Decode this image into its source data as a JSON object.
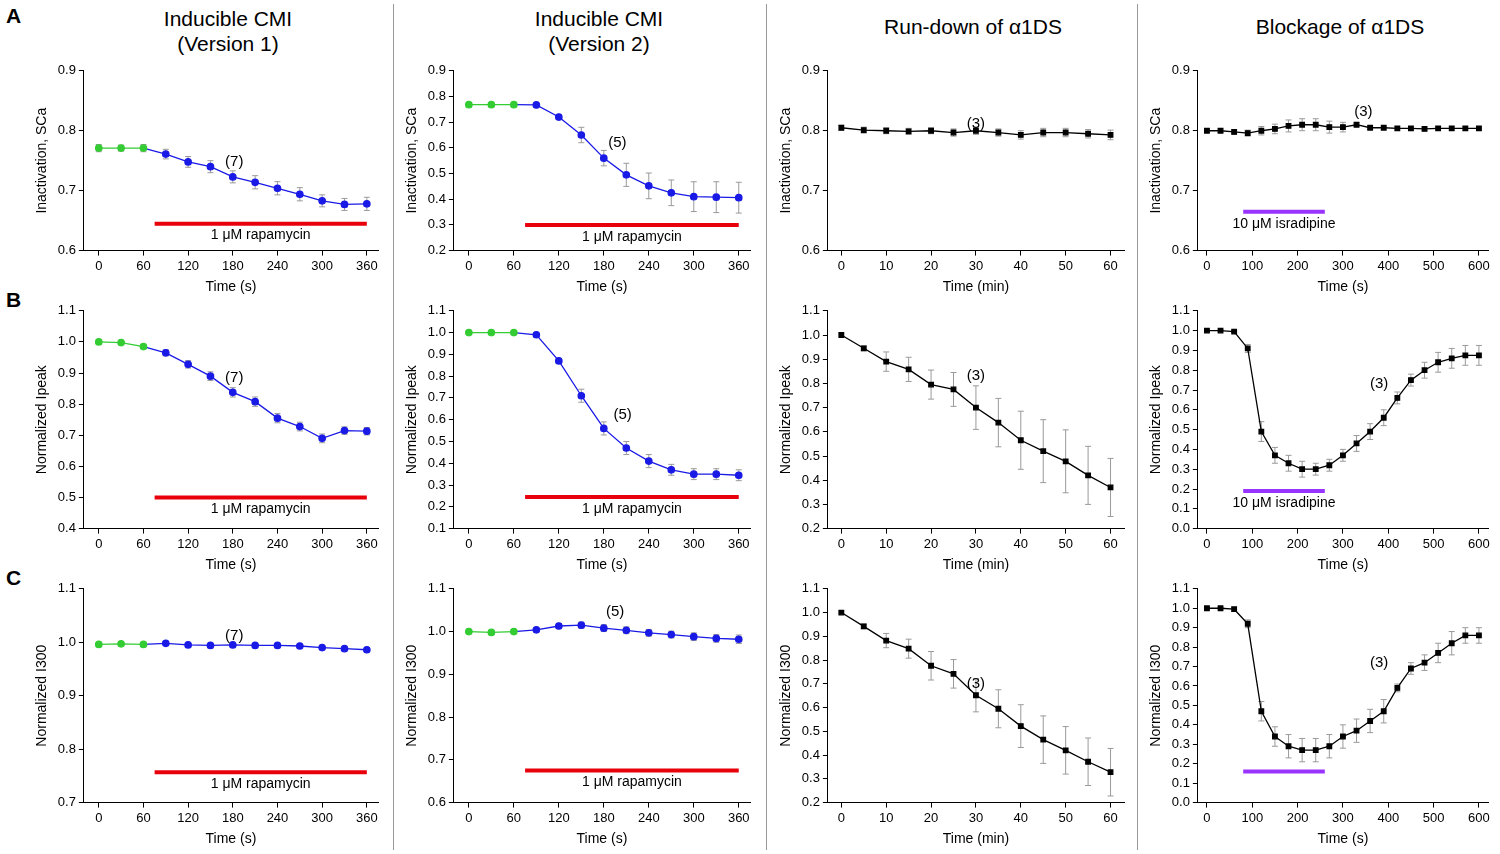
{
  "row_labels": [
    "A",
    "B",
    "C"
  ],
  "chart_data": [
    {
      "type": "line",
      "title": [
        "Inducible CMI",
        "(Version 1)"
      ],
      "x_label": "Time (s)",
      "y_label": "Inactivation, SCa",
      "x": [
        0,
        30,
        60,
        90,
        120,
        150,
        180,
        210,
        240,
        270,
        300,
        330,
        360
      ],
      "values": [
        0.771,
        0.771,
        0.771,
        0.761,
        0.748,
        0.74,
        0.723,
        0.714,
        0.704,
        0.694,
        0.683,
        0.677,
        0.678
      ],
      "errors": [
        0.006,
        0.005,
        0.006,
        0.008,
        0.009,
        0.01,
        0.01,
        0.011,
        0.011,
        0.011,
        0.01,
        0.01,
        0.011
      ],
      "colors": [
        "#33cc33",
        "#33cc33",
        "#33cc33",
        "#1a1ae6",
        "#1a1ae6",
        "#1a1ae6",
        "#1a1ae6",
        "#1a1ae6",
        "#1a1ae6",
        "#1a1ae6",
        "#1a1ae6",
        "#1a1ae6",
        "#1a1ae6"
      ],
      "marker": "circle",
      "grid": false,
      "xlim": [
        -20,
        375
      ],
      "xticks": [
        0,
        60,
        120,
        180,
        240,
        300,
        360
      ],
      "ylim": [
        0.6,
        0.9
      ],
      "yticks": [
        0.6,
        0.7,
        0.8,
        0.9
      ],
      "annotations": [
        {
          "text": "(7)",
          "x": 182,
          "y": 0.748
        }
      ],
      "treatment": {
        "label": "1 μM rapamycin",
        "x": [
          75,
          360
        ],
        "y": 0.645,
        "color": "#e8000b"
      }
    },
    {
      "type": "line",
      "title": [
        "Inducible CMI",
        "(Version 2)"
      ],
      "x_label": "Time (s)",
      "y_label": "Inactivation, SCa",
      "x": [
        0,
        30,
        60,
        90,
        120,
        150,
        180,
        210,
        240,
        270,
        300,
        330,
        360
      ],
      "values": [
        0.768,
        0.768,
        0.768,
        0.767,
        0.72,
        0.65,
        0.56,
        0.495,
        0.452,
        0.425,
        0.41,
        0.408,
        0.406
      ],
      "errors": [
        0.004,
        0.003,
        0.003,
        0.005,
        0.01,
        0.03,
        0.03,
        0.045,
        0.05,
        0.05,
        0.058,
        0.06,
        0.06
      ],
      "colors": [
        "#33cc33",
        "#33cc33",
        "#33cc33",
        "#1a1ae6",
        "#1a1ae6",
        "#1a1ae6",
        "#1a1ae6",
        "#1a1ae6",
        "#1a1ae6",
        "#1a1ae6",
        "#1a1ae6",
        "#1a1ae6",
        "#1a1ae6"
      ],
      "marker": "circle",
      "grid": false,
      "xlim": [
        -20,
        375
      ],
      "xticks": [
        0,
        60,
        120,
        180,
        240,
        300,
        360
      ],
      "ylim": [
        0.2,
        0.9
      ],
      "yticks": [
        0.2,
        0.3,
        0.4,
        0.5,
        0.6,
        0.7,
        0.8,
        0.9
      ],
      "annotations": [
        {
          "text": "(5)",
          "x": 198,
          "y": 0.62
        }
      ],
      "treatment": {
        "label": "1 μM rapamycin",
        "x": [
          75,
          360
        ],
        "y": 0.3,
        "color": "#e8000b"
      }
    },
    {
      "type": "line",
      "title": [
        "Run-down of α1DS"
      ],
      "x_label": "Time (min)",
      "y_label": "Inactivation, SCa",
      "x": [
        0,
        5,
        10,
        15,
        20,
        25,
        30,
        35,
        40,
        45,
        50,
        55,
        60
      ],
      "values": [
        0.805,
        0.801,
        0.8,
        0.799,
        0.8,
        0.797,
        0.8,
        0.797,
        0.793,
        0.797,
        0.797,
        0.795,
        0.793
      ],
      "errors": [
        0.004,
        0.005,
        0.005,
        0.005,
        0.005,
        0.006,
        0.006,
        0.006,
        0.007,
        0.007,
        0.007,
        0.007,
        0.008
      ],
      "color": "#000000",
      "marker": "square",
      "grid": false,
      "xlim": [
        -3,
        63
      ],
      "xticks": [
        0,
        10,
        20,
        30,
        40,
        50,
        60
      ],
      "ylim": [
        0.6,
        0.9
      ],
      "yticks": [
        0.6,
        0.7,
        0.8,
        0.9
      ],
      "annotations": [
        {
          "text": "(3)",
          "x": 30,
          "y": 0.812
        }
      ]
    },
    {
      "type": "line",
      "title": [
        "Blockage of α1DS"
      ],
      "x_label": "Time (s)",
      "y_label": "Inactivation, SCa",
      "x": [
        0,
        30,
        60,
        90,
        120,
        150,
        180,
        210,
        240,
        270,
        300,
        330,
        360,
        390,
        420,
        450,
        480,
        510,
        540,
        570,
        600
      ],
      "values": [
        0.8,
        0.8,
        0.798,
        0.796,
        0.8,
        0.803,
        0.808,
        0.81,
        0.81,
        0.806,
        0.806,
        0.81,
        0.805,
        0.805,
        0.804,
        0.804,
        0.803,
        0.804,
        0.804,
        0.804,
        0.804
      ],
      "errors": [
        0.003,
        0.003,
        0.004,
        0.005,
        0.007,
        0.008,
        0.01,
        0.01,
        0.01,
        0.01,
        0.008,
        0.003,
        0.003,
        0.003,
        0.003,
        0.003,
        0.003,
        0.003,
        0.003,
        0.003,
        0.003
      ],
      "color": "#000000",
      "marker": "square",
      "grid": false,
      "xlim": [
        -20,
        620
      ],
      "xticks": [
        0,
        100,
        200,
        300,
        400,
        500,
        600
      ],
      "ylim": [
        0.6,
        0.9
      ],
      "yticks": [
        0.6,
        0.7,
        0.8,
        0.9
      ],
      "annotations": [
        {
          "text": "(3)",
          "x": 345,
          "y": 0.832
        }
      ],
      "treatment": {
        "label": "10 μM isradipine",
        "x": [
          80,
          260
        ],
        "y": 0.665,
        "color": "#9933ff"
      }
    },
    {
      "type": "line",
      "x_label": "Time (s)",
      "y_label": "Normalized Ipeak",
      "x": [
        0,
        30,
        60,
        90,
        120,
        150,
        180,
        210,
        240,
        270,
        300,
        330,
        360
      ],
      "values": [
        1.0,
        0.998,
        0.985,
        0.965,
        0.928,
        0.89,
        0.838,
        0.808,
        0.755,
        0.728,
        0.69,
        0.715,
        0.713
      ],
      "errors": [
        0.003,
        0.004,
        0.006,
        0.01,
        0.012,
        0.014,
        0.015,
        0.015,
        0.015,
        0.014,
        0.014,
        0.012,
        0.012
      ],
      "colors": [
        "#33cc33",
        "#33cc33",
        "#33cc33",
        "#1a1ae6",
        "#1a1ae6",
        "#1a1ae6",
        "#1a1ae6",
        "#1a1ae6",
        "#1a1ae6",
        "#1a1ae6",
        "#1a1ae6",
        "#1a1ae6",
        "#1a1ae6"
      ],
      "marker": "circle",
      "grid": false,
      "xlim": [
        -20,
        375
      ],
      "xticks": [
        0,
        60,
        120,
        180,
        240,
        300,
        360
      ],
      "ylim": [
        0.4,
        1.1
      ],
      "yticks": [
        0.4,
        0.5,
        0.6,
        0.7,
        0.8,
        0.9,
        {
          "value": 1,
          "label": "1.0"
        },
        1.1
      ],
      "annotations": [
        {
          "text": "(7)",
          "x": 182,
          "y": 0.885
        }
      ],
      "treatment": {
        "label": "1 μM rapamycin",
        "x": [
          75,
          360
        ],
        "y": 0.5,
        "color": "#e8000b"
      }
    },
    {
      "type": "line",
      "x_label": "Time (s)",
      "y_label": "Normalized Ipeak",
      "x": [
        0,
        30,
        60,
        90,
        120,
        150,
        180,
        210,
        240,
        270,
        300,
        330,
        360
      ],
      "values": [
        1.0,
        1.0,
        1.0,
        0.99,
        0.87,
        0.71,
        0.56,
        0.47,
        0.41,
        0.37,
        0.35,
        0.35,
        0.345
      ],
      "errors": [
        0.005,
        0.005,
        0.005,
        0.008,
        0.01,
        0.03,
        0.03,
        0.03,
        0.03,
        0.025,
        0.025,
        0.025,
        0.025
      ],
      "colors": [
        "#33cc33",
        "#33cc33",
        "#33cc33",
        "#1a1ae6",
        "#1a1ae6",
        "#1a1ae6",
        "#1a1ae6",
        "#1a1ae6",
        "#1a1ae6",
        "#1a1ae6",
        "#1a1ae6",
        "#1a1ae6",
        "#1a1ae6"
      ],
      "marker": "circle",
      "grid": false,
      "xlim": [
        -20,
        375
      ],
      "xticks": [
        0,
        60,
        120,
        180,
        240,
        300,
        360
      ],
      "ylim": [
        0.1,
        1.1
      ],
      "yticks": [
        0.1,
        0.2,
        0.3,
        0.4,
        0.5,
        0.6,
        0.7,
        0.8,
        0.9,
        {
          "value": 1,
          "label": "1.0"
        },
        1.1
      ],
      "annotations": [
        {
          "text": "(5)",
          "x": 205,
          "y": 0.62
        }
      ],
      "treatment": {
        "label": "1 μM rapamycin",
        "x": [
          75,
          360
        ],
        "y": 0.245,
        "color": "#e8000b"
      }
    },
    {
      "type": "line",
      "x_label": "Time (min)",
      "y_label": "Normalized Ipeak",
      "x": [
        0,
        5,
        10,
        15,
        20,
        25,
        30,
        35,
        40,
        45,
        50,
        55,
        60
      ],
      "values": [
        1.0,
        0.945,
        0.89,
        0.858,
        0.795,
        0.775,
        0.7,
        0.638,
        0.565,
        0.52,
        0.478,
        0.42,
        0.37
      ],
      "errors": [
        0.005,
        0.01,
        0.04,
        0.05,
        0.06,
        0.07,
        0.09,
        0.1,
        0.12,
        0.13,
        0.13,
        0.12,
        0.12
      ],
      "color": "#000000",
      "marker": "square",
      "grid": false,
      "xlim": [
        -3,
        63
      ],
      "xticks": [
        0,
        10,
        20,
        30,
        40,
        50,
        60
      ],
      "ylim": [
        0.2,
        1.1
      ],
      "yticks": [
        0.2,
        0.3,
        0.4,
        0.5,
        0.6,
        0.7,
        0.8,
        0.9,
        {
          "value": 1,
          "label": "1.0"
        },
        1.1
      ],
      "annotations": [
        {
          "text": "(3)",
          "x": 30,
          "y": 0.83
        }
      ]
    },
    {
      "type": "line",
      "x_label": "Time (s)",
      "y_label": "Normalized Ipeak",
      "x": [
        0,
        30,
        60,
        90,
        120,
        150,
        180,
        210,
        240,
        270,
        300,
        330,
        360,
        390,
        420,
        450,
        480,
        510,
        540,
        570,
        600
      ],
      "values": [
        1.0,
        1.0,
        0.995,
        0.91,
        0.49,
        0.37,
        0.33,
        0.3,
        0.3,
        0.32,
        0.37,
        0.43,
        0.49,
        0.56,
        0.66,
        0.75,
        0.8,
        0.84,
        0.86,
        0.875,
        0.875
      ],
      "errors": [
        0.003,
        0.003,
        0.005,
        0.02,
        0.05,
        0.04,
        0.04,
        0.04,
        0.03,
        0.03,
        0.03,
        0.04,
        0.04,
        0.04,
        0.03,
        0.03,
        0.04,
        0.05,
        0.05,
        0.05,
        0.05
      ],
      "color": "#000000",
      "marker": "square",
      "grid": false,
      "xlim": [
        -20,
        620
      ],
      "xticks": [
        0,
        100,
        200,
        300,
        400,
        500,
        600
      ],
      "ylim": [
        0.0,
        1.1
      ],
      "yticks": [
        {
          "value": 0,
          "label": "0.0"
        },
        0.1,
        0.2,
        0.3,
        0.4,
        0.5,
        0.6,
        0.7,
        0.8,
        0.9,
        {
          "value": 1,
          "label": "1.0"
        },
        1.1
      ],
      "annotations": [
        {
          "text": "(3)",
          "x": 380,
          "y": 0.73
        }
      ],
      "treatment": {
        "label": "10 μM isradipine",
        "x": [
          80,
          260
        ],
        "y": 0.19,
        "color": "#9933ff"
      }
    },
    {
      "type": "line",
      "x_label": "Time (s)",
      "y_label": "Normalized I300",
      "x": [
        0,
        30,
        60,
        90,
        120,
        150,
        180,
        210,
        240,
        270,
        300,
        330,
        360
      ],
      "values": [
        0.996,
        0.997,
        0.996,
        0.998,
        0.995,
        0.994,
        0.995,
        0.994,
        0.994,
        0.993,
        0.99,
        0.988,
        0.986
      ],
      "errors": [
        0.002,
        0.002,
        0.002,
        0.002,
        0.002,
        0.002,
        0.002,
        0.002,
        0.002,
        0.002,
        0.002,
        0.002,
        0.002
      ],
      "colors": [
        "#33cc33",
        "#33cc33",
        "#33cc33",
        "#1a1ae6",
        "#1a1ae6",
        "#1a1ae6",
        "#1a1ae6",
        "#1a1ae6",
        "#1a1ae6",
        "#1a1ae6",
        "#1a1ae6",
        "#1a1ae6",
        "#1a1ae6"
      ],
      "marker": "circle",
      "grid": false,
      "xlim": [
        -20,
        375
      ],
      "xticks": [
        0,
        60,
        120,
        180,
        240,
        300,
        360
      ],
      "ylim": [
        0.7,
        1.1
      ],
      "yticks": [
        0.7,
        0.8,
        0.9,
        {
          "value": 1,
          "label": "1.0"
        },
        1.1
      ],
      "annotations": [
        {
          "text": "(7)",
          "x": 182,
          "y": 1.012
        }
      ],
      "treatment": {
        "label": "1 μM rapamycin",
        "x": [
          75,
          360
        ],
        "y": 0.757,
        "color": "#e8000b"
      }
    },
    {
      "type": "line",
      "x_label": "Time (s)",
      "y_label": "Normalized I300",
      "x": [
        0,
        30,
        60,
        90,
        120,
        150,
        180,
        210,
        240,
        270,
        300,
        330,
        360
      ],
      "values": [
        1.0,
        0.998,
        1.0,
        1.004,
        1.013,
        1.015,
        1.008,
        1.003,
        0.997,
        0.993,
        0.988,
        0.984,
        0.982
      ],
      "errors": [
        0.004,
        0.004,
        0.004,
        0.005,
        0.006,
        0.007,
        0.008,
        0.008,
        0.008,
        0.008,
        0.009,
        0.009,
        0.01
      ],
      "colors": [
        "#33cc33",
        "#33cc33",
        "#33cc33",
        "#1a1ae6",
        "#1a1ae6",
        "#1a1ae6",
        "#1a1ae6",
        "#1a1ae6",
        "#1a1ae6",
        "#1a1ae6",
        "#1a1ae6",
        "#1a1ae6",
        "#1a1ae6"
      ],
      "marker": "circle",
      "grid": false,
      "xlim": [
        -20,
        375
      ],
      "xticks": [
        0,
        60,
        120,
        180,
        240,
        300,
        360
      ],
      "ylim": [
        0.6,
        1.1
      ],
      "yticks": [
        0.6,
        0.7,
        0.8,
        0.9,
        {
          "value": 1,
          "label": "1.0"
        },
        1.1
      ],
      "annotations": [
        {
          "text": "(5)",
          "x": 195,
          "y": 1.045
        }
      ],
      "treatment": {
        "label": "1 μM rapamycin",
        "x": [
          75,
          360
        ],
        "y": 0.675,
        "color": "#e8000b"
      }
    },
    {
      "type": "line",
      "x_label": "Time (min)",
      "y_label": "Normalized I300",
      "x": [
        0,
        5,
        10,
        15,
        20,
        25,
        30,
        35,
        40,
        45,
        50,
        55,
        60
      ],
      "values": [
        1.0,
        0.942,
        0.882,
        0.848,
        0.776,
        0.742,
        0.652,
        0.595,
        0.522,
        0.465,
        0.42,
        0.372,
        0.328
      ],
      "errors": [
        0.005,
        0.01,
        0.03,
        0.04,
        0.06,
        0.06,
        0.07,
        0.08,
        0.09,
        0.1,
        0.1,
        0.1,
        0.1
      ],
      "color": "#000000",
      "marker": "square",
      "grid": false,
      "xlim": [
        -3,
        63
      ],
      "xticks": [
        0,
        10,
        20,
        30,
        40,
        50,
        60
      ],
      "ylim": [
        0.2,
        1.1
      ],
      "yticks": [
        0.2,
        0.3,
        0.4,
        0.5,
        0.6,
        0.7,
        0.8,
        0.9,
        {
          "value": 1,
          "label": "1.0"
        },
        1.1
      ],
      "annotations": [
        {
          "text": "(3)",
          "x": 30,
          "y": 0.7
        }
      ]
    },
    {
      "type": "line",
      "x_label": "Time (s)",
      "y_label": "Normalized I300",
      "x": [
        0,
        30,
        60,
        90,
        120,
        150,
        180,
        210,
        240,
        270,
        300,
        330,
        360,
        390,
        420,
        450,
        480,
        510,
        540,
        570,
        600
      ],
      "values": [
        1.0,
        1.0,
        0.995,
        0.92,
        0.47,
        0.34,
        0.29,
        0.27,
        0.27,
        0.29,
        0.34,
        0.37,
        0.42,
        0.47,
        0.59,
        0.69,
        0.72,
        0.77,
        0.82,
        0.86,
        0.86
      ],
      "errors": [
        0.003,
        0.003,
        0.01,
        0.02,
        0.05,
        0.05,
        0.06,
        0.06,
        0.06,
        0.06,
        0.06,
        0.06,
        0.06,
        0.06,
        0.02,
        0.03,
        0.04,
        0.05,
        0.06,
        0.04,
        0.04
      ],
      "color": "#000000",
      "marker": "square",
      "grid": false,
      "xlim": [
        -20,
        620
      ],
      "xticks": [
        0,
        100,
        200,
        300,
        400,
        500,
        600
      ],
      "ylim": [
        0.0,
        1.1
      ],
      "yticks": [
        {
          "value": 0,
          "label": "0.0"
        },
        0.1,
        0.2,
        0.3,
        0.4,
        0.5,
        0.6,
        0.7,
        0.8,
        0.9,
        {
          "value": 1,
          "label": "1.0"
        },
        1.1
      ],
      "annotations": [
        {
          "text": "(3)",
          "x": 380,
          "y": 0.72
        }
      ],
      "treatment": {
        "x": [
          80,
          260
        ],
        "y": 0.16,
        "color": "#9933ff"
      }
    }
  ]
}
